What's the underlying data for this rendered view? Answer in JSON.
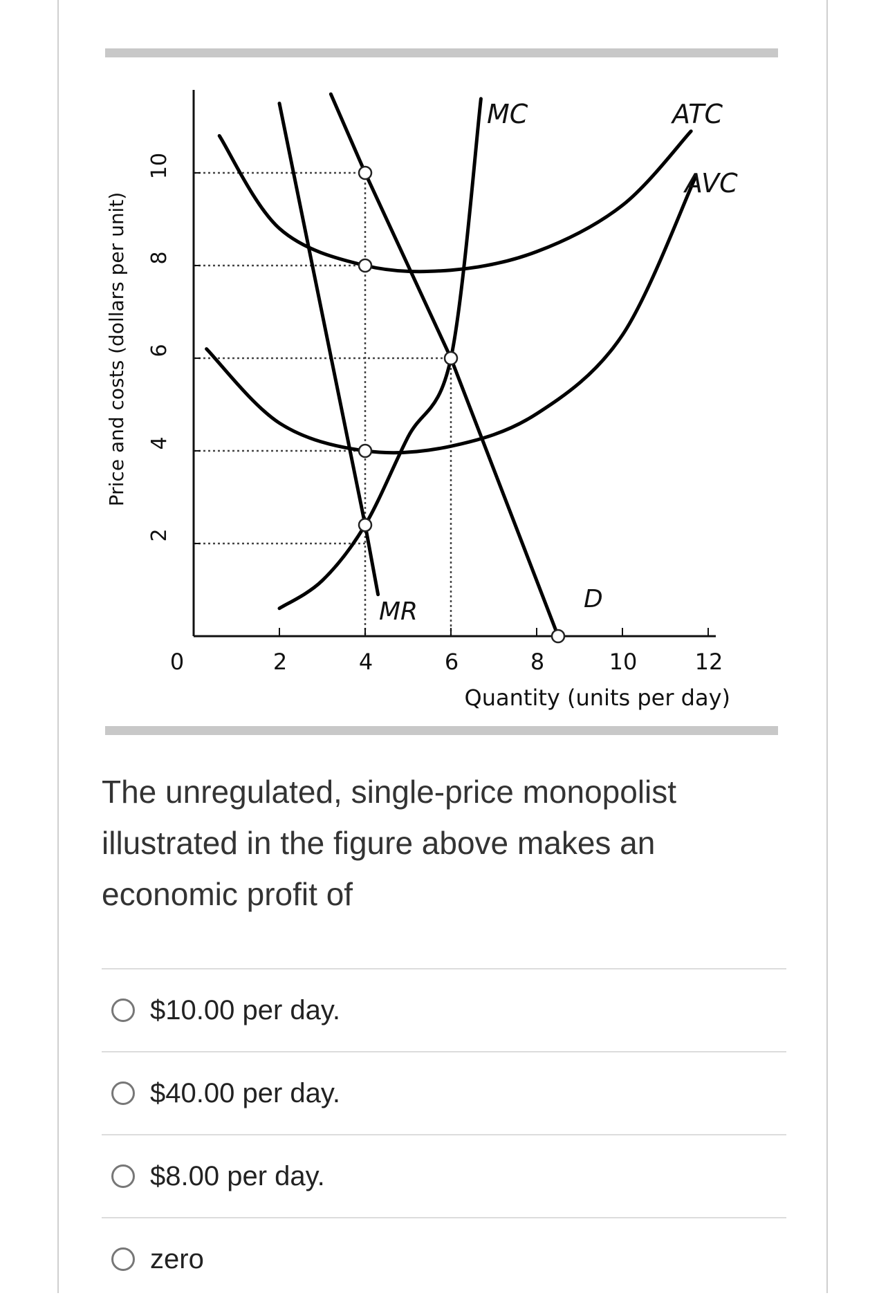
{
  "figure": {
    "y_axis_label": "Price and costs (dollars per unit)",
    "x_axis_label": "Quantity (units per day)",
    "y_ticks": [
      "10",
      "8",
      "6",
      "4",
      "2"
    ],
    "x_ticks": [
      "0",
      "2",
      "4",
      "6",
      "8",
      "10",
      "12"
    ],
    "curve_labels": {
      "mc": "MC",
      "atc": "ATC",
      "avc": "AVC",
      "mr": "MR",
      "d": "D"
    }
  },
  "chart_data": {
    "type": "line",
    "xlabel": "Quantity (units per day)",
    "ylabel": "Price and costs (dollars per unit)",
    "xlim": [
      0,
      12
    ],
    "ylim": [
      0,
      11.5
    ],
    "series": [
      {
        "name": "MC",
        "points": [
          [
            2,
            0.6
          ],
          [
            3,
            1.2
          ],
          [
            4,
            2.4
          ],
          [
            5,
            4.3
          ],
          [
            6,
            6.0
          ],
          [
            6.7,
            11.6
          ]
        ]
      },
      {
        "name": "ATC",
        "points": [
          [
            0.6,
            10.8
          ],
          [
            2,
            8.8
          ],
          [
            4,
            8.0
          ],
          [
            6,
            7.9
          ],
          [
            8,
            8.3
          ],
          [
            10,
            9.3
          ],
          [
            11.6,
            10.9
          ]
        ]
      },
      {
        "name": "AVC",
        "points": [
          [
            0.3,
            6.2
          ],
          [
            2,
            4.6
          ],
          [
            4,
            4.0
          ],
          [
            6,
            4.1
          ],
          [
            8,
            4.8
          ],
          [
            10,
            6.5
          ],
          [
            11.7,
            9.9
          ]
        ]
      },
      {
        "name": "D",
        "points": [
          [
            3.2,
            11.7
          ],
          [
            4,
            10.0
          ],
          [
            6,
            6.0
          ],
          [
            8.5,
            0.0
          ]
        ]
      },
      {
        "name": "MR",
        "points": [
          [
            2,
            11.5
          ],
          [
            4,
            2.4
          ],
          [
            4.3,
            0.9
          ]
        ]
      }
    ],
    "marked_points": [
      [
        4,
        10
      ],
      [
        4,
        8
      ],
      [
        6,
        6
      ],
      [
        4,
        4
      ],
      [
        4,
        2.4
      ],
      [
        8.5,
        0
      ]
    ]
  },
  "question": {
    "text": "The unregulated, single-price monopolist illustrated in the figure above makes an economic profit of"
  },
  "options": [
    {
      "label": "$10.00 per day."
    },
    {
      "label": "$40.00 per day."
    },
    {
      "label": "$8.00 per day."
    },
    {
      "label": "zero"
    }
  ]
}
